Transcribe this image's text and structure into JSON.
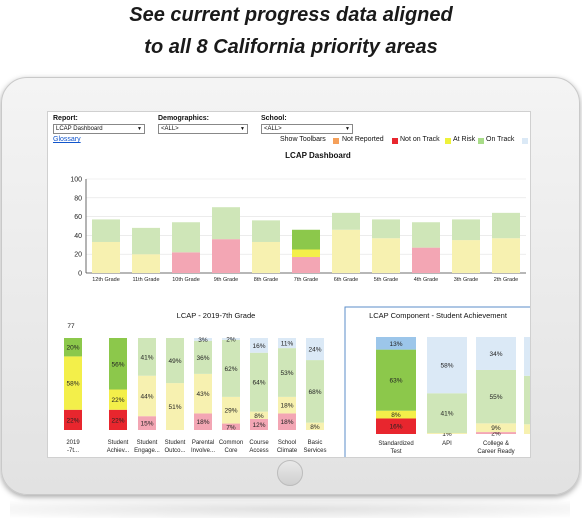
{
  "headline": {
    "line1": "See current progress data aligned",
    "line2": "to all 8 California priority areas"
  },
  "filters": {
    "report_label": "Report:",
    "report_value": "LCAP Dashboard",
    "demographics_label": "Demographics:",
    "demographics_value": "<ALL>",
    "school_label": "School:",
    "school_value": "<ALL>",
    "glossary": "Glossary"
  },
  "legend": {
    "show_toolbars": "Show Toolbars",
    "items": [
      {
        "label": "Not Reported",
        "color": "#f5a05a"
      },
      {
        "label": "Not on Track",
        "color": "#e8262e"
      },
      {
        "label": "At Risk",
        "color": "#eef23a"
      },
      {
        "label": "On Track",
        "color": "#a8dc88"
      }
    ]
  },
  "colors": {
    "red": "#e8262e",
    "light_red": "#f3a6b4",
    "yellow": "#f3ef4a",
    "light_yellow": "#f7f1b0",
    "green": "#8cc84b",
    "light_green": "#cfe6b8",
    "blue": "#9cc6ea",
    "light_blue": "#dbe9f6"
  },
  "chart_data": [
    {
      "type": "bar",
      "title": "LCAP Dashboard",
      "ylim": [
        0,
        100
      ],
      "yticks": [
        0,
        20,
        40,
        60,
        80,
        100
      ],
      "categories": [
        "12th Grade",
        "11th Grade",
        "10th Grade",
        "9th Grade",
        "8th Grade",
        "7th Grade",
        "6th Grade",
        "5th Grade",
        "4th Grade",
        "3th Grade",
        "2th Grade"
      ],
      "series": [
        {
          "values": [
            0,
            0,
            22,
            36,
            0,
            17,
            0,
            0,
            27,
            0,
            0
          ],
          "color": "light_red"
        },
        {
          "values": [
            33,
            20,
            0,
            0,
            33,
            0,
            46,
            37,
            0,
            35,
            37
          ],
          "color": "light_yellow"
        },
        {
          "values": [
            0,
            0,
            0,
            0,
            0,
            8,
            0,
            0,
            0,
            0,
            0
          ],
          "color": "yellow"
        },
        {
          "values": [
            24,
            28,
            32,
            34,
            23,
            0,
            18,
            20,
            27,
            22,
            27
          ],
          "color": "light_green"
        },
        {
          "values": [
            0,
            0,
            0,
            0,
            0,
            21,
            0,
            0,
            0,
            0,
            0
          ],
          "color": "green"
        }
      ],
      "highlight_index": 5
    },
    {
      "type": "bar",
      "title": "LCAP - 2019-7th Grade",
      "total_label": "77",
      "categories": [
        "2019 -7t...",
        "Student Achiev...",
        "Student Engage...",
        "Student Outco...",
        "Parental Involve...",
        "Common Core",
        "Course Access",
        "School Climate",
        "Basic Services"
      ],
      "bars": [
        {
          "segments": [
            {
              "v": 22,
              "c": "red",
              "label": "22%"
            },
            {
              "v": 58,
              "c": "yellow",
              "label": "58%"
            },
            {
              "v": 20,
              "c": "green",
              "label": "20%"
            }
          ]
        },
        {
          "segments": [
            {
              "v": 22,
              "c": "red",
              "label": "22%"
            },
            {
              "v": 22,
              "c": "yellow",
              "label": "22%"
            },
            {
              "v": 56,
              "c": "green",
              "label": "56%"
            }
          ]
        },
        {
          "segments": [
            {
              "v": 15,
              "c": "light_red",
              "label": "15%"
            },
            {
              "v": 44,
              "c": "light_yellow",
              "label": "44%"
            },
            {
              "v": 41,
              "c": "light_green",
              "label": "41%"
            }
          ]
        },
        {
          "segments": [
            {
              "v": 51,
              "c": "light_yellow",
              "label": "51%"
            },
            {
              "v": 49,
              "c": "light_green",
              "label": "49%"
            }
          ]
        },
        {
          "segments": [
            {
              "v": 18,
              "c": "light_red",
              "label": "18%"
            },
            {
              "v": 43,
              "c": "light_yellow",
              "label": "43%"
            },
            {
              "v": 36,
              "c": "light_green",
              "label": "36%"
            },
            {
              "v": 3,
              "c": "light_blue",
              "label": "3%"
            }
          ]
        },
        {
          "segments": [
            {
              "v": 7,
              "c": "light_red",
              "label": "7%"
            },
            {
              "v": 29,
              "c": "light_yellow",
              "label": "29%"
            },
            {
              "v": 62,
              "c": "light_green",
              "label": "62%"
            },
            {
              "v": 2,
              "c": "light_blue",
              "label": "2%"
            }
          ]
        },
        {
          "segments": [
            {
              "v": 12,
              "c": "light_red",
              "label": "12%"
            },
            {
              "v": 8,
              "c": "light_yellow",
              "label": "8%"
            },
            {
              "v": 64,
              "c": "light_green",
              "label": "64%"
            },
            {
              "v": 16,
              "c": "light_blue",
              "label": "16%"
            }
          ]
        },
        {
          "segments": [
            {
              "v": 18,
              "c": "light_red",
              "label": "18%"
            },
            {
              "v": 18,
              "c": "light_yellow",
              "label": "18%"
            },
            {
              "v": 53,
              "c": "light_green",
              "label": "53%"
            },
            {
              "v": 11,
              "c": "light_blue",
              "label": "11%"
            }
          ]
        },
        {
          "segments": [
            {
              "v": 8,
              "c": "light_yellow",
              "label": "8%"
            },
            {
              "v": 68,
              "c": "light_green",
              "label": "68%"
            },
            {
              "v": 24,
              "c": "light_blue",
              "label": "24%"
            }
          ]
        }
      ]
    },
    {
      "type": "bar",
      "title": "LCAP Component - Student Achievement",
      "categories": [
        "Standardized Test",
        "API",
        "College & Career Ready",
        ""
      ],
      "bars": [
        {
          "segments": [
            {
              "v": 16,
              "c": "red",
              "label": "16%"
            },
            {
              "v": 8,
              "c": "yellow",
              "label": "8%"
            },
            {
              "v": 63,
              "c": "green",
              "label": "63%"
            },
            {
              "v": 13,
              "c": "blue",
              "label": "13%"
            }
          ]
        },
        {
          "segments": [
            {
              "v": 1,
              "c": "light_yellow",
              "label": "1%"
            },
            {
              "v": 41,
              "c": "light_green",
              "label": "41%"
            },
            {
              "v": 58,
              "c": "light_blue",
              "label": "58%"
            }
          ]
        },
        {
          "segments": [
            {
              "v": 2,
              "c": "light_red",
              "label": "2%"
            },
            {
              "v": 9,
              "c": "light_yellow",
              "label": "9%"
            },
            {
              "v": 55,
              "c": "light_green",
              "label": "55%"
            },
            {
              "v": 34,
              "c": "light_blue",
              "label": "34%"
            }
          ]
        },
        {
          "segments": [
            {
              "v": 10,
              "c": "light_yellow",
              "label": ""
            },
            {
              "v": 50,
              "c": "light_green",
              "label": ""
            },
            {
              "v": 40,
              "c": "light_blue",
              "label": ""
            }
          ]
        }
      ]
    }
  ]
}
